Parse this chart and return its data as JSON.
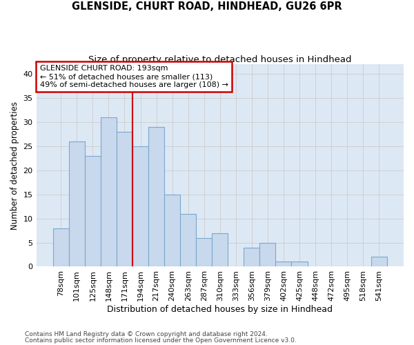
{
  "title": "GLENSIDE, CHURT ROAD, HINDHEAD, GU26 6PR",
  "subtitle": "Size of property relative to detached houses in Hindhead",
  "xlabel": "Distribution of detached houses by size in Hindhead",
  "ylabel": "Number of detached properties",
  "categories": [
    "78sqm",
    "101sqm",
    "125sqm",
    "148sqm",
    "171sqm",
    "194sqm",
    "217sqm",
    "240sqm",
    "263sqm",
    "287sqm",
    "310sqm",
    "333sqm",
    "356sqm",
    "379sqm",
    "402sqm",
    "425sqm",
    "448sqm",
    "472sqm",
    "495sqm",
    "518sqm",
    "541sqm"
  ],
  "values": [
    8,
    26,
    23,
    31,
    28,
    25,
    29,
    15,
    11,
    6,
    7,
    0,
    4,
    5,
    1,
    1,
    0,
    0,
    0,
    0,
    2
  ],
  "bar_color": "#c8d8ed",
  "bar_edge_color": "#7aa8cc",
  "annotation_title": "GLENSIDE CHURT ROAD: 193sqm",
  "annotation_line1": "← 51% of detached houses are smaller (113)",
  "annotation_line2": "49% of semi-detached houses are larger (108) →",
  "annotation_box_color": "#ffffff",
  "annotation_box_edge": "#cc0000",
  "redline_color": "#cc0000",
  "redline_bin_index": 5,
  "ylim": [
    0,
    42
  ],
  "yticks": [
    0,
    5,
    10,
    15,
    20,
    25,
    30,
    35,
    40
  ],
  "grid_color": "#cccccc",
  "bg_color": "#dde8f5",
  "footnote1": "Contains HM Land Registry data © Crown copyright and database right 2024.",
  "footnote2": "Contains public sector information licensed under the Open Government Licence v3.0.",
  "title_fontsize": 10.5,
  "subtitle_fontsize": 9.5,
  "xlabel_fontsize": 9,
  "ylabel_fontsize": 8.5,
  "tick_fontsize": 8,
  "footnote_fontsize": 6.5,
  "annotation_fontsize": 8
}
